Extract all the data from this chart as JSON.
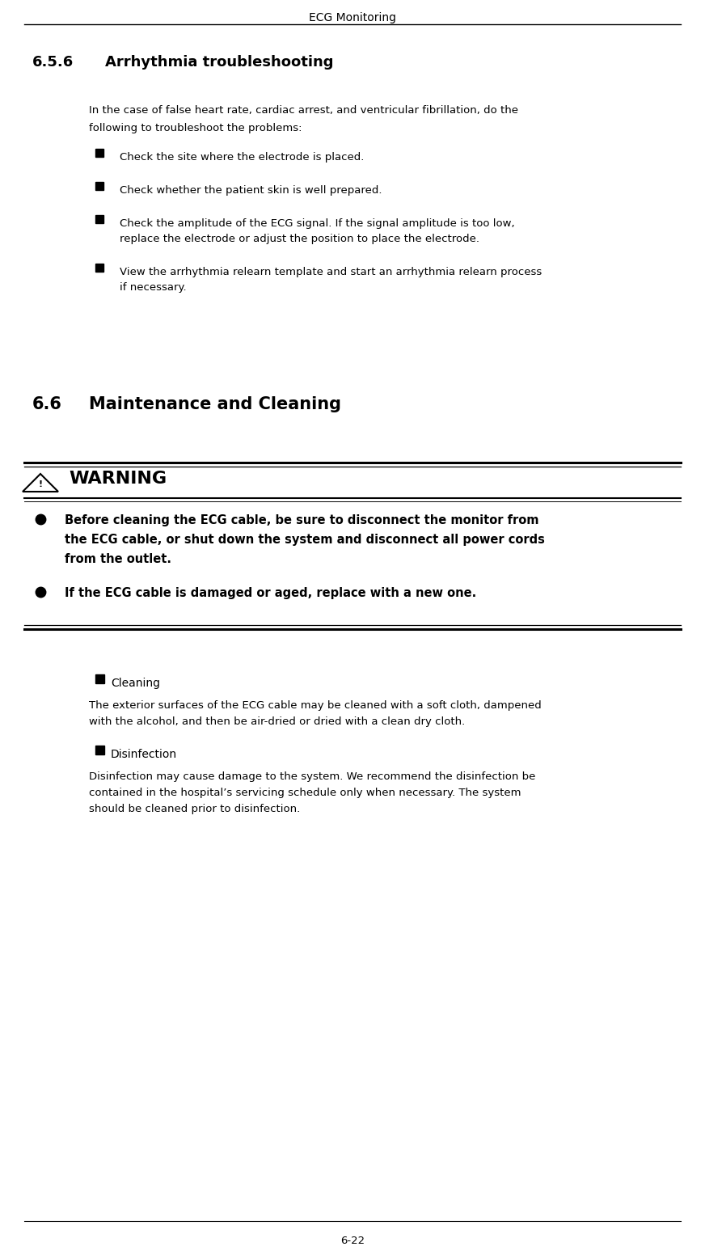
{
  "page_title": "ECG Monitoring",
  "page_number": "6-22",
  "section_656": "6.5.6",
  "section_656_title": "Arrhythmia troubleshooting",
  "section_656_intro_line1": "In the case of false heart rate, cardiac arrest, and ventricular fibrillation, do the",
  "section_656_intro_line2": "following to troubleshoot the problems:",
  "bullets_656": [
    [
      "Check the site where the electrode is placed."
    ],
    [
      "Check whether the patient skin is well prepared."
    ],
    [
      "Check the amplitude of the ECG signal. If the signal amplitude is too low,",
      "replace the electrode or adjust the position to place the electrode."
    ],
    [
      "View the arrhythmia relearn template and start an arrhythmia relearn process",
      "if necessary."
    ]
  ],
  "section_66": "6.6",
  "section_66_title": "Maintenance and Cleaning",
  "warning_title": "WARNING",
  "warning_bullets": [
    [
      "Before cleaning the ECG cable, be sure to disconnect the monitor from",
      "the ECG cable, or shut down the system and disconnect all power cords",
      "from the outlet."
    ],
    [
      "If the ECG cable is damaged or aged, replace with a new one."
    ]
  ],
  "cleaning_title": "Cleaning",
  "cleaning_text": [
    "The exterior surfaces of the ECG cable may be cleaned with a soft cloth, dampened",
    "with the alcohol, and then be air-dried or dried with a clean dry cloth."
  ],
  "disinfection_title": "Disinfection",
  "disinfection_text": [
    "Disinfection may cause damage to the system. We recommend the disinfection be",
    "contained in the hospital’s servicing schedule only when necessary. The system",
    "should be cleaned prior to disinfection."
  ],
  "bg_color": "#ffffff",
  "text_color": "#000000",
  "body_fontsize": 9.5,
  "heading_656_fontsize": 13,
  "heading_66_fontsize": 15,
  "page_title_fontsize": 10,
  "warn_body_fontsize": 10.5,
  "warn_title_fontsize": 16
}
